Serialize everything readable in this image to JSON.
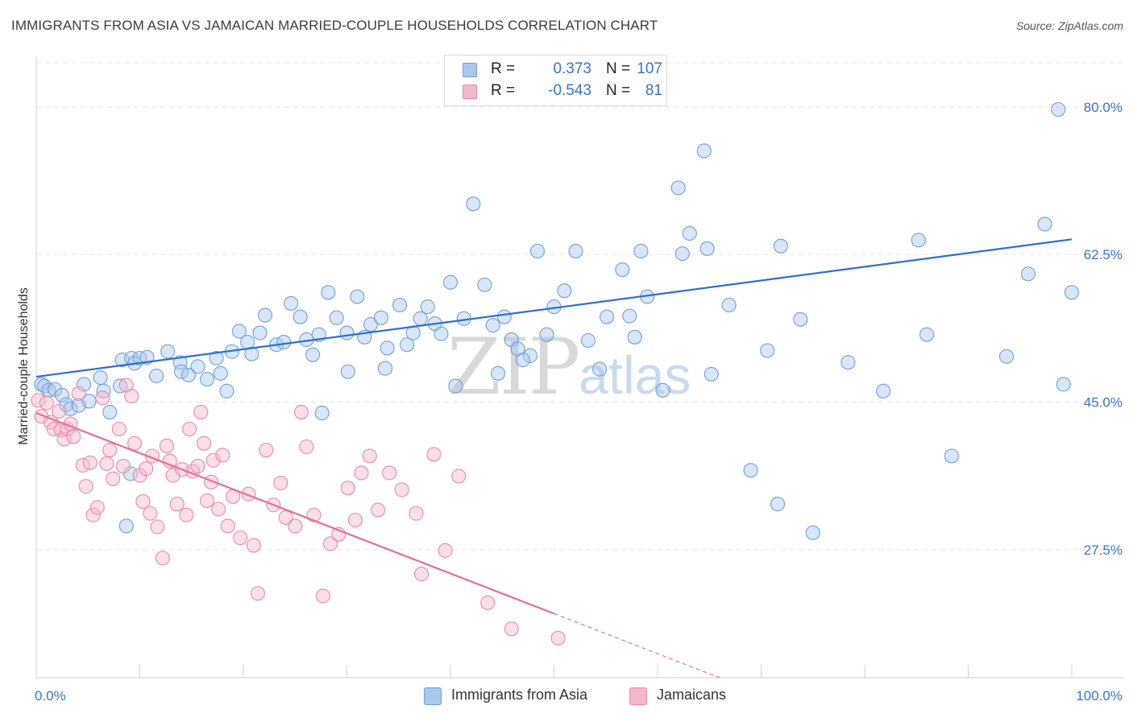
{
  "title": "IMMIGRANTS FROM ASIA VS JAMAICAN MARRIED-COUPLE HOUSEHOLDS CORRELATION CHART",
  "source": "Source: ZipAtlas.com",
  "watermark": {
    "zip": "ZIP",
    "atlas": "atlas"
  },
  "legend": {
    "r_label": "R =",
    "n_label": "N =",
    "rows": [
      {
        "r": "0.373",
        "n": "107"
      },
      {
        "r": "-0.543",
        "n": "81"
      }
    ]
  },
  "bottom_legend": [
    "Immigrants from Asia",
    "Jamaicans"
  ],
  "colors": {
    "blue_fill": "#a9c8ee",
    "blue_stroke": "#6f9fd9",
    "blue_line": "#2f6fcf",
    "pink_fill": "#f4b8cb",
    "pink_stroke": "#e889a8",
    "pink_line": "#e36f97",
    "tick_label": "#3a73c9",
    "grid": "#e3e3e3"
  },
  "chart_data": {
    "type": "scatter",
    "xlabel": "",
    "ylabel": "Married-couple Households",
    "xlim": [
      0,
      100
    ],
    "ylim": [
      12.3,
      86.0
    ],
    "x_tick_labels": [
      "0.0%",
      "100.0%"
    ],
    "y_ticks": [
      27.5,
      45.0,
      62.5,
      80.0
    ],
    "y_tick_labels": [
      "27.5%",
      "45.0%",
      "62.5%",
      "80.0%"
    ],
    "grid": true,
    "legend_position": "top-center",
    "series": [
      {
        "name": "Immigrants from Asia",
        "color": "blue",
        "r": 0.373,
        "n": 107,
        "trend": {
          "x": [
            0,
            100
          ],
          "y": [
            48.0,
            64.3
          ],
          "solid_to": 100
        },
        "points": [
          [
            0.5,
            47.1
          ],
          [
            0.8,
            46.9
          ],
          [
            1.2,
            46.4
          ],
          [
            1.8,
            46.5
          ],
          [
            2.5,
            45.8
          ],
          [
            2.9,
            44.7
          ],
          [
            3.3,
            44.2
          ],
          [
            4.1,
            44.6
          ],
          [
            4.6,
            47.1
          ],
          [
            5.1,
            45.1
          ],
          [
            6.2,
            47.9
          ],
          [
            6.5,
            46.3
          ],
          [
            7.1,
            43.8
          ],
          [
            8.1,
            46.9
          ],
          [
            8.3,
            50.0
          ],
          [
            9.2,
            50.2
          ],
          [
            9.5,
            49.6
          ],
          [
            10.0,
            50.2
          ],
          [
            10.7,
            50.3
          ],
          [
            11.6,
            48.1
          ],
          [
            12.7,
            51.0
          ],
          [
            13.9,
            49.7
          ],
          [
            14.0,
            48.6
          ],
          [
            14.7,
            48.2
          ],
          [
            15.6,
            49.2
          ],
          [
            16.5,
            47.7
          ],
          [
            17.4,
            50.2
          ],
          [
            17.8,
            48.4
          ],
          [
            18.9,
            51.0
          ],
          [
            19.6,
            53.4
          ],
          [
            20.4,
            52.1
          ],
          [
            20.8,
            50.7
          ],
          [
            21.6,
            53.2
          ],
          [
            22.1,
            55.3
          ],
          [
            23.2,
            51.8
          ],
          [
            23.9,
            52.1
          ],
          [
            24.6,
            56.7
          ],
          [
            25.5,
            55.1
          ],
          [
            26.1,
            52.4
          ],
          [
            26.7,
            50.6
          ],
          [
            27.3,
            53.0
          ],
          [
            28.2,
            58.0
          ],
          [
            29.0,
            55.0
          ],
          [
            30.1,
            48.6
          ],
          [
            31.0,
            57.5
          ],
          [
            31.7,
            52.7
          ],
          [
            32.3,
            54.2
          ],
          [
            33.3,
            55.0
          ],
          [
            33.9,
            51.4
          ],
          [
            35.1,
            56.5
          ],
          [
            35.8,
            51.8
          ],
          [
            36.4,
            53.2
          ],
          [
            37.1,
            54.9
          ],
          [
            37.8,
            56.3
          ],
          [
            38.5,
            54.3
          ],
          [
            39.1,
            53.1
          ],
          [
            40.0,
            59.2
          ],
          [
            40.5,
            46.9
          ],
          [
            41.3,
            54.9
          ],
          [
            42.2,
            68.5
          ],
          [
            43.3,
            58.9
          ],
          [
            44.1,
            54.1
          ],
          [
            44.6,
            48.4
          ],
          [
            45.2,
            55.1
          ],
          [
            45.9,
            52.4
          ],
          [
            46.5,
            51.3
          ],
          [
            47.7,
            50.5
          ],
          [
            48.4,
            62.9
          ],
          [
            49.3,
            53.0
          ],
          [
            50.0,
            56.3
          ],
          [
            51.0,
            58.2
          ],
          [
            52.1,
            62.9
          ],
          [
            53.3,
            52.3
          ],
          [
            54.4,
            48.9
          ],
          [
            55.1,
            55.1
          ],
          [
            56.6,
            60.7
          ],
          [
            57.3,
            55.2
          ],
          [
            57.8,
            52.7
          ],
          [
            58.4,
            62.9
          ],
          [
            59.0,
            57.5
          ],
          [
            60.5,
            46.4
          ],
          [
            62.0,
            70.4
          ],
          [
            62.4,
            62.6
          ],
          [
            63.1,
            65.0
          ],
          [
            64.5,
            74.8
          ],
          [
            64.8,
            63.2
          ],
          [
            65.2,
            48.3
          ],
          [
            66.9,
            56.5
          ],
          [
            69.0,
            36.9
          ],
          [
            70.6,
            51.1
          ],
          [
            71.6,
            32.9
          ],
          [
            71.9,
            63.5
          ],
          [
            73.8,
            54.8
          ],
          [
            75.0,
            29.5
          ],
          [
            78.4,
            49.7
          ],
          [
            81.8,
            46.3
          ],
          [
            85.2,
            64.2
          ],
          [
            86.0,
            53.0
          ],
          [
            88.4,
            38.6
          ],
          [
            93.7,
            50.4
          ],
          [
            95.8,
            60.2
          ],
          [
            97.4,
            66.1
          ],
          [
            98.7,
            79.7
          ],
          [
            99.2,
            47.1
          ],
          [
            100.0,
            58.0
          ],
          [
            47.0,
            50.0
          ],
          [
            30.0,
            53.2
          ],
          [
            9.1,
            36.5
          ],
          [
            8.7,
            30.3
          ],
          [
            27.6,
            43.7
          ],
          [
            18.4,
            46.3
          ],
          [
            33.7,
            49.0
          ]
        ]
      },
      {
        "name": "Jamaicans",
        "color": "pink",
        "r": -0.543,
        "n": 81,
        "trend": {
          "x": [
            0,
            66
          ],
          "y": [
            43.7,
            12.3
          ],
          "solid_to": 50
        },
        "points": [
          [
            0.2,
            45.2
          ],
          [
            0.5,
            43.3
          ],
          [
            1.0,
            44.9
          ],
          [
            1.4,
            42.6
          ],
          [
            1.7,
            41.8
          ],
          [
            2.2,
            43.9
          ],
          [
            2.4,
            41.7
          ],
          [
            2.7,
            40.6
          ],
          [
            3.0,
            41.8
          ],
          [
            3.3,
            42.4
          ],
          [
            3.6,
            40.9
          ],
          [
            4.1,
            46.0
          ],
          [
            4.5,
            37.5
          ],
          [
            4.8,
            35.0
          ],
          [
            5.2,
            37.8
          ],
          [
            5.5,
            31.6
          ],
          [
            5.9,
            32.5
          ],
          [
            6.4,
            45.5
          ],
          [
            6.8,
            37.7
          ],
          [
            7.1,
            39.3
          ],
          [
            7.4,
            35.9
          ],
          [
            8.0,
            41.8
          ],
          [
            8.4,
            37.4
          ],
          [
            8.7,
            47.0
          ],
          [
            9.2,
            45.7
          ],
          [
            9.5,
            40.1
          ],
          [
            10.0,
            36.3
          ],
          [
            10.3,
            33.2
          ],
          [
            10.6,
            37.1
          ],
          [
            11.0,
            31.8
          ],
          [
            11.2,
            38.6
          ],
          [
            11.7,
            30.2
          ],
          [
            12.2,
            26.5
          ],
          [
            12.6,
            39.8
          ],
          [
            12.9,
            38.0
          ],
          [
            13.2,
            36.3
          ],
          [
            13.6,
            32.9
          ],
          [
            14.1,
            37.0
          ],
          [
            14.5,
            31.6
          ],
          [
            14.8,
            41.8
          ],
          [
            15.1,
            36.8
          ],
          [
            15.6,
            37.4
          ],
          [
            15.9,
            43.8
          ],
          [
            16.2,
            40.1
          ],
          [
            16.5,
            33.3
          ],
          [
            16.9,
            35.5
          ],
          [
            17.1,
            38.1
          ],
          [
            17.6,
            32.3
          ],
          [
            18.0,
            38.7
          ],
          [
            18.5,
            30.3
          ],
          [
            19.0,
            33.8
          ],
          [
            19.7,
            28.9
          ],
          [
            20.5,
            34.1
          ],
          [
            21.0,
            28.0
          ],
          [
            21.4,
            22.3
          ],
          [
            22.2,
            39.3
          ],
          [
            22.9,
            32.8
          ],
          [
            23.6,
            35.4
          ],
          [
            24.1,
            31.3
          ],
          [
            25.0,
            30.3
          ],
          [
            25.6,
            43.8
          ],
          [
            26.1,
            39.7
          ],
          [
            26.8,
            31.6
          ],
          [
            27.7,
            22.0
          ],
          [
            28.4,
            28.2
          ],
          [
            29.2,
            29.3
          ],
          [
            30.1,
            34.8
          ],
          [
            30.8,
            31.0
          ],
          [
            31.4,
            36.6
          ],
          [
            32.2,
            38.6
          ],
          [
            33.0,
            32.2
          ],
          [
            34.1,
            36.6
          ],
          [
            35.3,
            34.6
          ],
          [
            36.7,
            31.8
          ],
          [
            37.2,
            24.6
          ],
          [
            38.4,
            38.8
          ],
          [
            39.5,
            27.4
          ],
          [
            40.8,
            36.2
          ],
          [
            43.6,
            21.2
          ],
          [
            45.9,
            18.1
          ],
          [
            50.4,
            17.0
          ]
        ]
      }
    ]
  }
}
